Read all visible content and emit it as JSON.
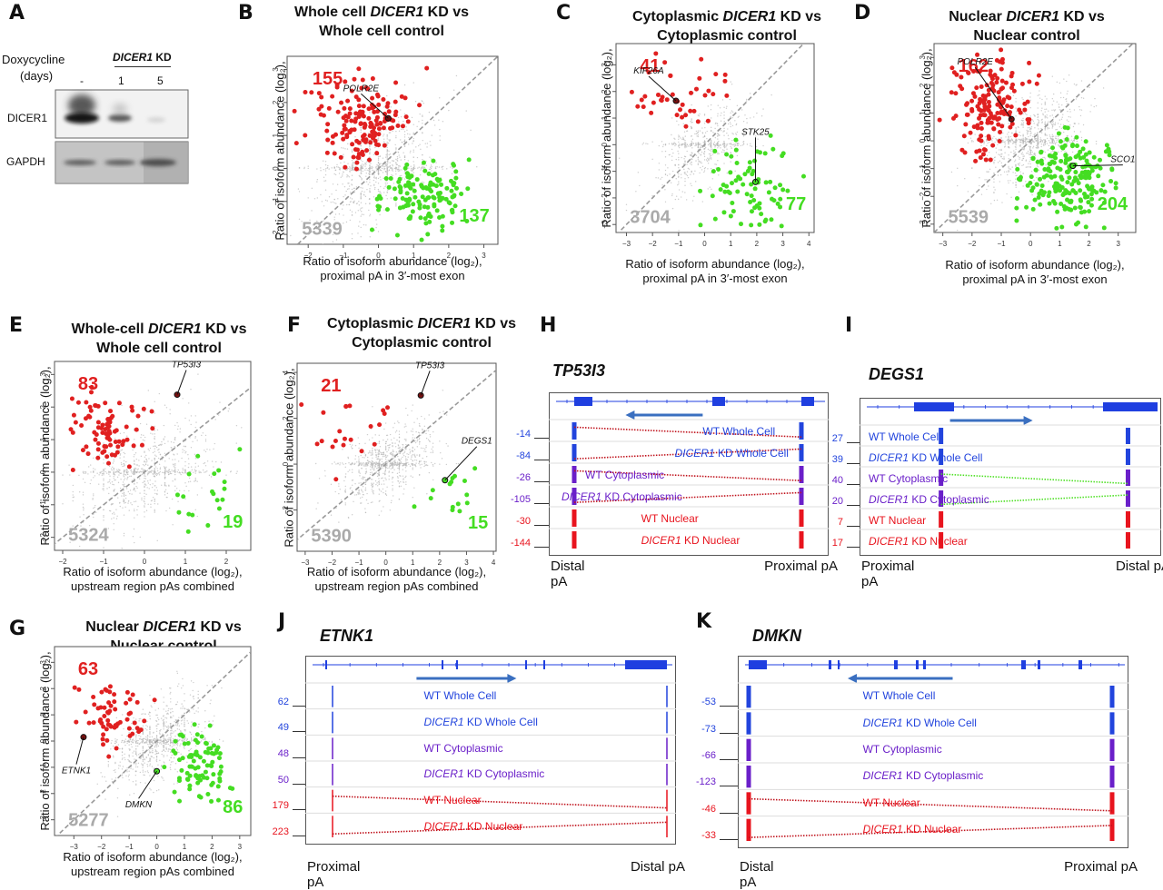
{
  "colors": {
    "up": "#e02020",
    "down": "#44dd22",
    "ns": "#b8b8b8",
    "whole_cell": "#2244dd",
    "cytoplasmic": "#6a1fc9",
    "nuclear": "#e8141e",
    "gene_model": "#1f3fe0",
    "arrow": "#3a6fc0",
    "link_red": "#c0141e",
    "link_green": "#4ee024"
  },
  "panelA": {
    "letter": "A",
    "treatment_label": "Doxycycline",
    "treatment_unit": "(days)",
    "group_label_gene": "DICER1",
    "group_label_suffix": " KD",
    "lanes": [
      "-",
      "1",
      "5"
    ],
    "rows": [
      "DICER1",
      "GAPDH"
    ]
  },
  "chart_data": [
    {
      "id": "B",
      "type": "scatter",
      "title_pre": "Whole cell ",
      "title_gene": "DICER1",
      "title_post": " KD  vs",
      "title_line2": "Whole cell control",
      "ylabel_line1": "Ratio of isoform abundance (log₂),",
      "ylabel_line2": "distal pA in 3′-most exon",
      "xlabel_line1": "Ratio of isoform abundance (log₂),",
      "xlabel_line2": "proximal pA in 3′-most exon",
      "xlim": [
        -2.6,
        3.4
      ],
      "ylim": [
        -2.3,
        3.4
      ],
      "xticks": [
        -2,
        -1,
        0,
        1,
        2,
        3
      ],
      "yticks": [
        -2,
        -1,
        0,
        1,
        2,
        3
      ],
      "counts": {
        "up": 155,
        "down": 137,
        "ns": 5339
      },
      "up_center": [
        -0.5,
        1.3
      ],
      "up_spread": [
        0.75,
        0.65
      ],
      "down_center": [
        1.2,
        -0.9
      ],
      "down_spread": [
        0.65,
        0.55
      ],
      "annotations": [
        {
          "label": "POLR2E",
          "x": 0.28,
          "y": 1.52,
          "group": "up"
        }
      ],
      "diagonal": "y = x"
    },
    {
      "id": "C",
      "type": "scatter",
      "title_pre": "Cytoplasmic ",
      "title_gene": "DICER1",
      "title_post": " KD  vs",
      "title_line2": "Cytoplasmic control",
      "ylabel_line1": "Ratio of isoform abundance (log₂),",
      "ylabel_line2": "distal pA in 3′-most exon",
      "xlabel_line1": "Ratio of isoform abundance (log₂),",
      "xlabel_line2": "proximal pA in 3′-most exon",
      "xlim": [
        -3.4,
        4.2
      ],
      "ylim": [
        -3.3,
        3.8
      ],
      "xticks": [
        -3,
        -2,
        -1,
        0,
        1,
        2,
        3,
        4
      ],
      "yticks": [
        -3,
        -2,
        -1,
        0,
        1,
        2,
        3
      ],
      "counts": {
        "up": 41,
        "down": 77,
        "ns": 3704
      },
      "up_center": [
        -1.2,
        1.7
      ],
      "up_spread": [
        0.9,
        0.75
      ],
      "down_center": [
        1.7,
        -1.2
      ],
      "down_spread": [
        0.85,
        0.9
      ],
      "annotations": [
        {
          "label": "KIF26A",
          "x": -1.1,
          "y": 1.65,
          "group": "up"
        },
        {
          "label": "STK25",
          "x": 1.95,
          "y": -1.4,
          "group": "down"
        }
      ],
      "diagonal": "y = x"
    },
    {
      "id": "D",
      "type": "scatter",
      "title_pre": "Nuclear ",
      "title_gene": "DICER1",
      "title_post": " KD vs",
      "title_line2": "Nuclear control",
      "ylabel_line1": "Ratio of isoform abundance (log₂),",
      "ylabel_line2": "distal pA in 3′-most exon",
      "xlabel_line1": "Ratio of isoform abundance (log₂),",
      "xlabel_line2": "proximal pA in 3′-most exon",
      "xlim": [
        -3.3,
        3.6
      ],
      "ylim": [
        -3.3,
        3.5
      ],
      "xticks": [
        -3,
        -2,
        -1,
        0,
        1,
        2,
        3
      ],
      "yticks": [
        -3,
        -2,
        -1,
        0,
        1,
        2,
        3
      ],
      "counts": {
        "up": 162,
        "down": 204,
        "ns": 5539
      },
      "up_center": [
        -1.3,
        1.2
      ],
      "up_spread": [
        0.8,
        0.8
      ],
      "down_center": [
        1.3,
        -1.2
      ],
      "down_spread": [
        0.75,
        0.85
      ],
      "annotations": [
        {
          "label": "POLR2E",
          "x": -0.65,
          "y": 0.78,
          "group": "up"
        },
        {
          "label": "SCO1",
          "x": 1.45,
          "y": -0.9,
          "group": "down"
        }
      ],
      "diagonal": "y = x"
    },
    {
      "id": "E",
      "type": "scatter",
      "title_pre": "Whole-cell ",
      "title_gene": "DICER1",
      "title_post": " KD vs",
      "title_line2": "Whole cell control",
      "ylabel_line1": "Ratio of isoform abundance (log₂),",
      "ylabel_line2": "3′most exon pAs combined",
      "xlabel_line1": "Ratio of isoform abundance (log₂),",
      "xlabel_line2": "upstream region pAs combined",
      "xlim": [
        -2.2,
        2.6
      ],
      "ylim": [
        -2.4,
        3.4
      ],
      "xticks": [
        -2,
        -1,
        0,
        1,
        2
      ],
      "yticks": [
        -2,
        -1,
        0,
        1,
        2,
        3
      ],
      "counts": {
        "up": 83,
        "down": 19,
        "ns": 5324
      },
      "up_center": [
        -0.9,
        1.1
      ],
      "up_spread": [
        0.45,
        0.6
      ],
      "down_center": [
        1.4,
        -0.6
      ],
      "down_spread": [
        0.5,
        0.6
      ],
      "annotations": [
        {
          "label": "TP53I3",
          "x": 0.8,
          "y": 2.38,
          "group": "up"
        }
      ],
      "diagonal": "y = x"
    },
    {
      "id": "F",
      "type": "scatter",
      "title_pre": "Cytoplasmic ",
      "title_gene": "DICER1",
      "title_post": " KD vs",
      "title_line2": "Cytoplasmic control",
      "ylabel_line1": "Ratio of isoform abundance (log₂),",
      "ylabel_line2": "3′most exon pAs combined",
      "xlabel_line1": "Ratio of isoform abundance (log₂),",
      "xlabel_line2": "upstream region pAs combined",
      "xlim": [
        -3.3,
        4.1
      ],
      "ylim": [
        -3.8,
        4.4
      ],
      "xticks": [
        -3,
        -2,
        -1,
        0,
        1,
        2,
        3,
        4
      ],
      "yticks": [
        -2,
        0,
        2,
        4
      ],
      "counts": {
        "up": 21,
        "down": 15,
        "ns": 5390
      },
      "up_center": [
        -1.6,
        1.5
      ],
      "up_spread": [
        0.8,
        0.9
      ],
      "down_center": [
        2.4,
        -1.0
      ],
      "down_spread": [
        0.5,
        0.8
      ],
      "annotations": [
        {
          "label": "TP53I3",
          "x": 1.3,
          "y": 3.0,
          "group": "up"
        },
        {
          "label": "DEGS1",
          "x": 2.2,
          "y": -0.7,
          "group": "down"
        }
      ],
      "diagonal": "y = x"
    },
    {
      "id": "G",
      "type": "scatter",
      "title_pre": "Nuclear ",
      "title_gene": "DICER1",
      "title_post": " KD vs",
      "title_line2": "Nuclear control",
      "ylabel_line1": "Ratio of isoform abundance (log₂),",
      "ylabel_line2": "3′most exon pAs combined",
      "xlabel_line1": "Ratio of isoform abundance (log₂),",
      "xlabel_line2": "upstream region pAs combined",
      "xlim": [
        -3.7,
        3.4
      ],
      "ylim": [
        -3.6,
        3.6
      ],
      "xticks": [
        -3,
        -2,
        -1,
        0,
        1,
        2,
        3
      ],
      "yticks": [
        -3,
        -2,
        -1,
        0,
        1,
        2,
        3
      ],
      "counts": {
        "up": 63,
        "down": 86,
        "ns": 5277
      },
      "up_center": [
        -1.6,
        1.0
      ],
      "up_spread": [
        0.65,
        0.75
      ],
      "down_center": [
        1.6,
        -0.9
      ],
      "down_spread": [
        0.5,
        0.8
      ],
      "annotations": [
        {
          "label": "ETNK1",
          "x": -2.65,
          "y": 0.15,
          "group": "up"
        },
        {
          "label": "DMKN",
          "x": 0.0,
          "y": -1.15,
          "group": "down"
        }
      ],
      "diagonal": "y = x"
    }
  ],
  "tracks": [
    {
      "id": "H",
      "gene": "TP53I3",
      "strand": "minus",
      "left_label": "Distal pA",
      "right_label": "Proximal pA",
      "link_color": "link_red",
      "rows": [
        {
          "label_pre": "WT Whole Cell",
          "label_gene": "",
          "color": "whole_cell",
          "scale": "-14",
          "link": true
        },
        {
          "label_pre": "",
          "label_gene": "DICER1",
          "label_post": " KD Whole Cell",
          "color": "whole_cell",
          "scale": "-84",
          "link": true
        },
        {
          "label_pre": "WT Cytoplasmic",
          "label_gene": "",
          "color": "cytoplasmic",
          "scale": "-26",
          "link": true
        },
        {
          "label_pre": "",
          "label_gene": "DICER1",
          "label_post": " KD Cytoplasmic",
          "color": "cytoplasmic",
          "scale": "-105",
          "link": true
        },
        {
          "label_pre": "WT Nuclear",
          "label_gene": "",
          "color": "nuclear",
          "scale": "-30",
          "link": false
        },
        {
          "label_pre": "",
          "label_gene": "DICER1",
          "label_post": " KD Nuclear",
          "color": "nuclear",
          "scale": "-144",
          "link": false
        }
      ]
    },
    {
      "id": "I",
      "gene": "DEGS1",
      "strand": "plus",
      "left_label": "Proximal pA",
      "right_label": "Distal pA",
      "link_color": "link_green",
      "rows": [
        {
          "label_pre": "WT Whole Cell",
          "label_gene": "",
          "color": "whole_cell",
          "scale": "27",
          "link": false
        },
        {
          "label_pre": "",
          "label_gene": "DICER1",
          "label_post": " KD Whole Cell",
          "color": "whole_cell",
          "scale": "39",
          "link": false
        },
        {
          "label_pre": "WT Cytoplasmic",
          "label_gene": "",
          "color": "cytoplasmic",
          "scale": "40",
          "link": true
        },
        {
          "label_pre": "",
          "label_gene": "DICER1",
          "label_post": " KD   Cytoplasmic",
          "color": "cytoplasmic",
          "scale": "20",
          "link": true
        },
        {
          "label_pre": "WT Nuclear",
          "label_gene": "",
          "color": "nuclear",
          "scale": "7",
          "link": false
        },
        {
          "label_pre": "",
          "label_gene": "DICER1",
          "label_post": " KD Nuclear",
          "color": "nuclear",
          "scale": "17",
          "link": false
        }
      ]
    },
    {
      "id": "J",
      "gene": "ETNK1",
      "strand": "plus",
      "left_label": "Proximal pA",
      "right_label": "Distal pA",
      "link_color": "link_red",
      "rows": [
        {
          "label_pre": "WT Whole Cell",
          "label_gene": "",
          "color": "whole_cell",
          "scale": "62",
          "link": false
        },
        {
          "label_pre": "",
          "label_gene": "DICER1",
          "label_post": " KD Whole Cell",
          "color": "whole_cell",
          "scale": "49",
          "link": false
        },
        {
          "label_pre": "WT Cytoplasmic",
          "label_gene": "",
          "color": "cytoplasmic",
          "scale": "48",
          "link": false
        },
        {
          "label_pre": "",
          "label_gene": "DICER1",
          "label_post": " KD Cytoplasmic",
          "color": "cytoplasmic",
          "scale": "50",
          "link": false
        },
        {
          "label_pre": "WT Nuclear",
          "label_gene": "",
          "color": "nuclear",
          "scale": "179",
          "link": true
        },
        {
          "label_pre": "",
          "label_gene": "DICER1",
          "label_post": " KD Nuclear",
          "color": "nuclear",
          "scale": "223",
          "link": true
        }
      ]
    },
    {
      "id": "K",
      "gene": "DMKN",
      "strand": "minus",
      "left_label": "Distal pA",
      "right_label": "Proximal pA",
      "link_color": "link_red",
      "rows": [
        {
          "label_pre": "WT Whole Cell",
          "label_gene": "",
          "color": "whole_cell",
          "scale": "-53",
          "link": false
        },
        {
          "label_pre": "",
          "label_gene": "DICER1",
          "label_post": " KD Whole Cell",
          "color": "whole_cell",
          "scale": "-73",
          "link": false
        },
        {
          "label_pre": "WT Cytoplasmic",
          "label_gene": "",
          "color": "cytoplasmic",
          "scale": "-66",
          "link": false
        },
        {
          "label_pre": "",
          "label_gene": "DICER1",
          "label_post": " KD Cytoplasmic",
          "color": "cytoplasmic",
          "scale": "-123",
          "link": false
        },
        {
          "label_pre": "WT Nuclear",
          "label_gene": "",
          "color": "nuclear",
          "scale": "-46",
          "link": true
        },
        {
          "label_pre": "",
          "label_gene": "DICER1",
          "label_post": " KD Nuclear",
          "color": "nuclear",
          "scale": "-33",
          "link": true
        }
      ]
    }
  ]
}
